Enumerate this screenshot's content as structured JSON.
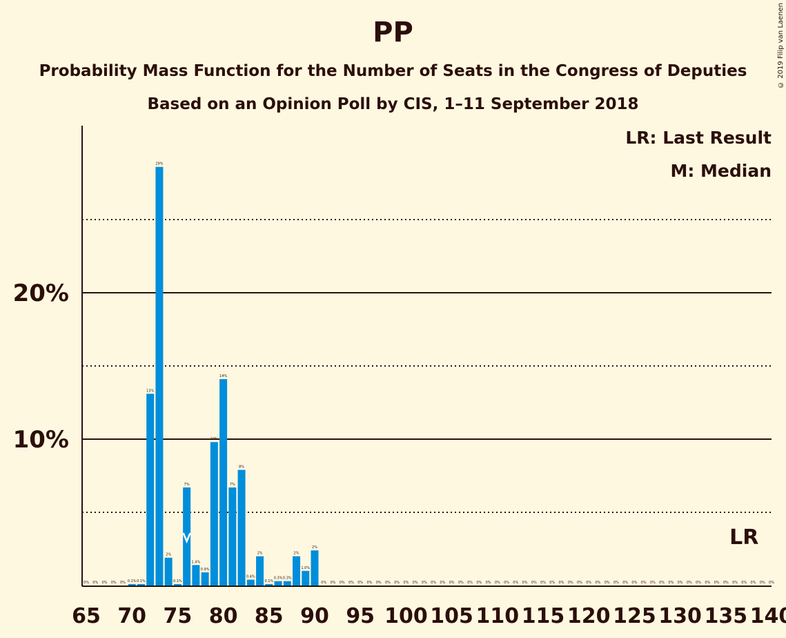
{
  "header": {
    "title": "PP",
    "subtitle1": "Probability Mass Function for the Number of Seats in the Congress of Deputies",
    "subtitle2": "Based on an Opinion Poll by CIS, 1–11 September 2018",
    "copyright": "© 2019 Filip van Laenen"
  },
  "legend": {
    "lr": "LR: Last Result",
    "m": "M: Median"
  },
  "colors": {
    "bar": "#008EDB",
    "background": "#FFF8E1",
    "text": "#2b0f0a"
  },
  "chart_data": {
    "type": "bar",
    "title": "PP",
    "xlabel": "",
    "ylabel": "",
    "ylim": [
      0,
      30
    ],
    "x_ticks": [
      65,
      70,
      75,
      80,
      85,
      90,
      95,
      100,
      105,
      110,
      115,
      120,
      125,
      130,
      135,
      140
    ],
    "y_ticks": [
      {
        "value": 10,
        "label": "10%"
      },
      {
        "value": 20,
        "label": "20%"
      }
    ],
    "dotted_gridlines": [
      5,
      15,
      25
    ],
    "median": {
      "seat": 76,
      "marker": "M"
    },
    "last_result": {
      "seat": 137,
      "label": "LR"
    },
    "categories": [
      65,
      66,
      67,
      68,
      69,
      70,
      71,
      72,
      73,
      74,
      75,
      76,
      77,
      78,
      79,
      80,
      81,
      82,
      83,
      84,
      85,
      86,
      87,
      88,
      89,
      90,
      91,
      92,
      93,
      94,
      95,
      96,
      97,
      98,
      99,
      100,
      101,
      102,
      103,
      104,
      105,
      106,
      107,
      108,
      109,
      110,
      111,
      112,
      113,
      114,
      115,
      116,
      117,
      118,
      119,
      120,
      121,
      122,
      123,
      124,
      125,
      126,
      127,
      128,
      129,
      130,
      131,
      132,
      133,
      134,
      135,
      136,
      137,
      138,
      139,
      140
    ],
    "values": [
      0,
      0,
      0,
      0,
      0,
      0.1,
      0.1,
      13.1,
      28.6,
      1.9,
      0.1,
      6.7,
      1.4,
      0.9,
      9.8,
      14.1,
      6.7,
      7.9,
      0.4,
      2.0,
      0.1,
      0.3,
      0.3,
      2.0,
      1.0,
      2.4,
      0,
      0,
      0,
      0,
      0,
      0,
      0,
      0,
      0,
      0,
      0,
      0,
      0,
      0,
      0,
      0,
      0,
      0,
      0,
      0,
      0,
      0,
      0,
      0,
      0,
      0,
      0,
      0,
      0,
      0,
      0,
      0,
      0,
      0,
      0,
      0,
      0,
      0,
      0,
      0,
      0,
      0,
      0,
      0,
      0,
      0,
      0,
      0,
      0,
      0
    ],
    "labels": [
      "0%",
      "0%",
      "0%",
      "0%",
      "0%",
      "0.1%",
      "0.1%",
      "13%",
      "29%",
      "2%",
      "0.1%",
      "7%",
      "1.4%",
      "0.9%",
      "10%",
      "14%",
      "7%",
      "8%",
      "0.4%",
      "2%",
      "0.1%",
      "0.3%",
      "0.3%",
      "2%",
      "1.0%",
      "2%",
      "0%",
      "0%",
      "0%",
      "0%",
      "0%",
      "0%",
      "0%",
      "0%",
      "0%",
      "0%",
      "0%",
      "0%",
      "0%",
      "0%",
      "0%",
      "0%",
      "0%",
      "0%",
      "0%",
      "0%",
      "0%",
      "0%",
      "0%",
      "0%",
      "0%",
      "0%",
      "0%",
      "0%",
      "0%",
      "0%",
      "0%",
      "0%",
      "0%",
      "0%",
      "0%",
      "0%",
      "0%",
      "0%",
      "0%",
      "0%",
      "0%",
      "0%",
      "0%",
      "0%",
      "0%",
      "0%",
      "0%",
      "0%",
      "0%",
      "0%"
    ]
  }
}
